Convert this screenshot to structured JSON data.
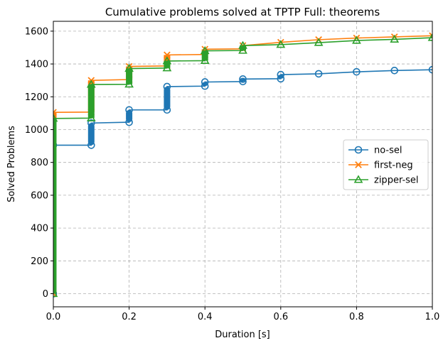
{
  "chart_data": {
    "type": "line",
    "title": "Cumulative problems solved at TPTP Full: theorems",
    "xlabel": "Duration [s]",
    "ylabel": "Solved Problems",
    "xlim": [
      0.0,
      1.0
    ],
    "ylim": [
      -80,
      1660
    ],
    "xticks": [
      "0.0",
      "0.2",
      "0.4",
      "0.6",
      "0.8",
      "1.0"
    ],
    "yticks": [
      "0",
      "200",
      "400",
      "600",
      "800",
      "1000",
      "1200",
      "1400",
      "1600"
    ],
    "grid": true,
    "legend_position": "center-right",
    "series": [
      {
        "name": "no-sel",
        "color": "#1f77b4",
        "marker": "circle",
        "x": [
          0.0,
          0.0,
          0.1,
          0.1,
          0.2,
          0.2,
          0.3,
          0.3,
          0.4,
          0.4,
          0.5,
          0.5,
          0.6,
          0.6,
          0.7,
          0.8,
          0.9,
          1.0
        ],
        "y": [
          0,
          905,
          905,
          1040,
          1045,
          1120,
          1120,
          1262,
          1265,
          1290,
          1293,
          1308,
          1310,
          1335,
          1340,
          1352,
          1360,
          1365
        ]
      },
      {
        "name": "first-neg",
        "color": "#ff7f0e",
        "marker": "x",
        "x": [
          0.0,
          0.0,
          0.1,
          0.1,
          0.2,
          0.2,
          0.3,
          0.3,
          0.4,
          0.4,
          0.5,
          0.5,
          0.6,
          0.7,
          0.8,
          0.9,
          1.0
        ],
        "y": [
          0,
          1105,
          1107,
          1300,
          1305,
          1385,
          1388,
          1455,
          1458,
          1490,
          1492,
          1512,
          1532,
          1548,
          1558,
          1565,
          1572
        ]
      },
      {
        "name": "zipper-sel",
        "color": "#2ca02c",
        "marker": "triangle",
        "x": [
          0.0,
          0.0,
          0.1,
          0.1,
          0.2,
          0.2,
          0.3,
          0.3,
          0.4,
          0.4,
          0.5,
          0.5,
          0.6,
          0.7,
          0.8,
          0.9,
          1.0
        ],
        "y": [
          0,
          1068,
          1070,
          1275,
          1276,
          1372,
          1375,
          1418,
          1420,
          1480,
          1482,
          1512,
          1518,
          1530,
          1543,
          1550,
          1560
        ]
      }
    ]
  }
}
